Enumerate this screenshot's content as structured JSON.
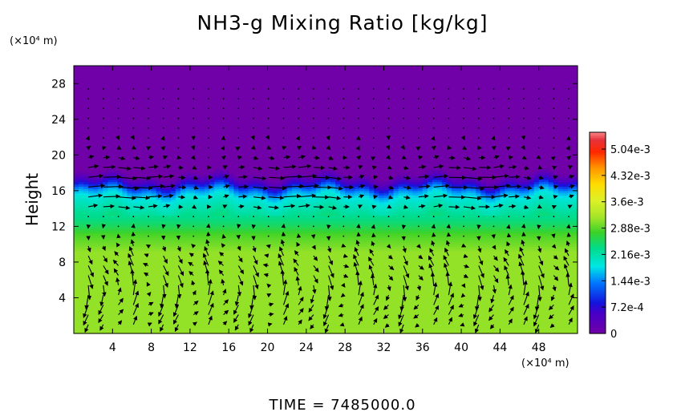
{
  "chart_data": {
    "type": "heatmap",
    "title": "NH3-g Mixing Ratio [kg/kg]",
    "ylabel": "Height",
    "x_unit_label": "(×10⁴ m)",
    "y_unit_label": "(×10⁴ m)",
    "footer": "TIME  =  7485000.0",
    "xlim": [
      0,
      52
    ],
    "ylim": [
      0,
      30
    ],
    "x_ticks": [
      "4",
      "8",
      "12",
      "16",
      "20",
      "24",
      "28",
      "32",
      "36",
      "40",
      "44",
      "48"
    ],
    "y_ticks": [
      "4",
      "8",
      "12",
      "16",
      "20",
      "24",
      "28"
    ],
    "colorbar": {
      "range": [
        0,
        0.0055
      ],
      "labels": [
        "0",
        "7.2e-4",
        "1.44e-3",
        "2.16e-3",
        "2.88e-3",
        "3.6e-3",
        "4.32e-3",
        "5.04e-3"
      ],
      "label_values": [
        0,
        0.00072,
        0.00144,
        0.00216,
        0.00288,
        0.0036,
        0.00432,
        0.00504
      ]
    },
    "field_profile": {
      "description_levels_km_x10": "vertical profile of mixing ratio vs height (x10^4 m)",
      "heights": [
        0,
        9,
        11,
        12,
        13,
        14,
        15,
        15.8,
        16.5,
        17.2,
        17.8,
        30
      ],
      "values": [
        0.0031,
        0.0031,
        0.0028,
        0.0025,
        0.0023,
        0.0021,
        0.0019,
        0.0015,
        0.0008,
        0.0003,
        0.0,
        0.0
      ]
    },
    "vectors": {
      "note": "wind vectors overlaid on field",
      "upper_jet_heights": [
        15,
        16,
        18,
        19,
        21
      ],
      "cell_centers_x": [
        4,
        12,
        20,
        28,
        36,
        44,
        50
      ]
    },
    "colors": {
      "background_upper": "#7000a8",
      "lower_field": "#d4f03c",
      "arrow": "#000000"
    }
  }
}
